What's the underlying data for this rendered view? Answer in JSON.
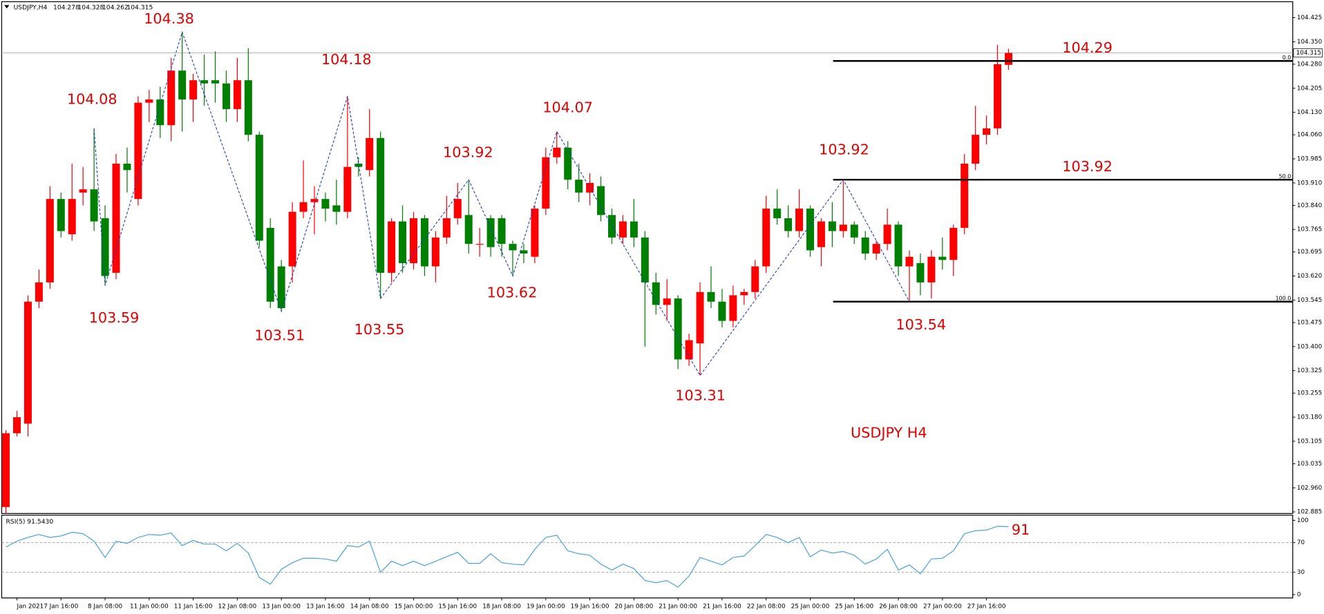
{
  "chart_data": {
    "type": "candlestick",
    "symbol": "USDJPY,H4",
    "up_color": "#ff0000",
    "down_color": "#008000",
    "ylim": [
      102.88,
      104.472
    ],
    "yticks": [
      104.425,
      {
        "value": 104.35,
        "label": "104.350"
      },
      {
        "value": 104.28,
        "label": "104.280"
      },
      104.205,
      {
        "value": 104.13,
        "label": "104.130"
      },
      {
        "value": 104.06,
        "label": "104.060"
      },
      103.985,
      {
        "value": 103.91,
        "label": "103.910"
      },
      {
        "value": 103.84,
        "label": "103.840"
      },
      103.765,
      103.695,
      {
        "value": 103.62,
        "label": "103.620"
      },
      103.545,
      103.475,
      {
        "value": 103.4,
        "label": "103.400"
      },
      103.325,
      103.255,
      {
        "value": 103.18,
        "label": "103.180"
      },
      103.105,
      103.035,
      {
        "value": 102.96,
        "label": "102.960"
      },
      102.885
    ],
    "categories": [
      null,
      "Jan 2021",
      null,
      null,
      null,
      "7 Jan 16:00",
      null,
      null,
      null,
      "8 Jan 08:00",
      null,
      null,
      null,
      "11 Jan 00:00",
      null,
      null,
      null,
      "11 Jan 16:00",
      null,
      null,
      null,
      "12 Jan 08:00",
      null,
      null,
      null,
      "13 Jan 00:00",
      null,
      null,
      null,
      "13 Jan 16:00",
      null,
      null,
      null,
      "14 Jan 08:00",
      null,
      null,
      null,
      "15 Jan 00:00",
      null,
      null,
      null,
      "15 Jan 16:00",
      null,
      null,
      null,
      "18 Jan 08:00",
      null,
      null,
      null,
      "19 Jan 00:00",
      null,
      null,
      null,
      "19 Jan 16:00",
      null,
      null,
      null,
      "20 Jan 08:00",
      null,
      null,
      null,
      "21 Jan 00:00",
      null,
      null,
      null,
      "21 Jan 16:00",
      null,
      null,
      null,
      "22 Jan 08:00",
      null,
      null,
      null,
      "25 Jan 00:00",
      null,
      null,
      null,
      "25 Jan 16:00",
      null,
      null,
      null,
      "26 Jan 08:00",
      null,
      null,
      null,
      "27 Jan 00:00",
      null,
      null,
      null,
      "27 Jan 16:00",
      null,
      null
    ],
    "ohlc": [
      [
        102.9,
        103.14,
        102.88,
        103.13
      ],
      [
        103.13,
        103.2,
        103.12,
        103.18
      ],
      [
        103.16,
        103.56,
        103.12,
        103.54
      ],
      [
        103.54,
        103.64,
        103.52,
        103.6
      ],
      [
        103.6,
        103.9,
        103.58,
        103.86
      ],
      [
        103.86,
        103.88,
        103.74,
        103.76
      ],
      [
        103.75,
        103.97,
        103.73,
        103.86
      ],
      [
        103.88,
        103.96,
        103.84,
        103.89
      ],
      [
        103.89,
        104.08,
        103.76,
        103.79
      ],
      [
        103.8,
        103.84,
        103.59,
        103.62
      ],
      [
        103.63,
        104.0,
        103.61,
        103.97
      ],
      [
        103.97,
        104.02,
        103.88,
        103.95
      ],
      [
        103.86,
        104.18,
        103.84,
        104.16
      ],
      [
        104.16,
        104.2,
        104.1,
        104.17
      ],
      [
        104.17,
        104.21,
        104.05,
        104.09
      ],
      [
        104.09,
        104.3,
        104.04,
        104.26
      ],
      [
        104.26,
        104.38,
        104.07,
        104.17
      ],
      [
        104.17,
        104.25,
        104.1,
        104.23
      ],
      [
        104.23,
        104.31,
        104.15,
        104.22
      ],
      [
        104.23,
        104.32,
        104.16,
        104.22
      ],
      [
        104.22,
        104.26,
        104.1,
        104.14
      ],
      [
        104.14,
        104.3,
        104.1,
        104.23
      ],
      [
        104.23,
        104.33,
        104.04,
        104.06
      ],
      [
        104.06,
        104.07,
        103.71,
        103.73
      ],
      [
        103.77,
        103.8,
        103.52,
        103.54
      ],
      [
        103.65,
        103.67,
        103.51,
        103.52
      ],
      [
        103.65,
        103.85,
        103.6,
        103.82
      ],
      [
        103.82,
        103.98,
        103.8,
        103.85
      ],
      [
        103.85,
        103.9,
        103.75,
        103.86
      ],
      [
        103.86,
        103.88,
        103.79,
        103.83
      ],
      [
        103.84,
        103.92,
        103.78,
        103.82
      ],
      [
        103.82,
        104.18,
        103.8,
        103.96
      ],
      [
        103.97,
        103.99,
        103.93,
        103.96
      ],
      [
        103.95,
        104.14,
        103.93,
        104.05
      ],
      [
        104.05,
        104.07,
        103.55,
        103.63
      ],
      [
        103.63,
        103.8,
        103.6,
        103.79
      ],
      [
        103.79,
        103.84,
        103.63,
        103.66
      ],
      [
        103.66,
        103.82,
        103.64,
        103.8
      ],
      [
        103.8,
        103.81,
        103.62,
        103.65
      ],
      [
        103.65,
        103.76,
        103.6,
        103.74
      ],
      [
        103.74,
        103.87,
        103.72,
        103.8
      ],
      [
        103.8,
        103.91,
        103.78,
        103.86
      ],
      [
        103.81,
        103.92,
        103.69,
        103.72
      ],
      [
        103.72,
        103.77,
        103.68,
        103.72
      ],
      [
        103.8,
        103.81,
        103.68,
        103.71
      ],
      [
        103.8,
        103.81,
        103.68,
        103.72
      ],
      [
        103.72,
        103.73,
        103.62,
        103.7
      ],
      [
        103.7,
        103.72,
        103.66,
        103.69
      ],
      [
        103.68,
        103.84,
        103.66,
        103.83
      ],
      [
        103.83,
        104.02,
        103.81,
        103.99
      ],
      [
        103.99,
        104.07,
        103.97,
        104.02
      ],
      [
        104.02,
        104.04,
        103.89,
        103.92
      ],
      [
        103.92,
        103.97,
        103.85,
        103.88
      ],
      [
        103.88,
        103.94,
        103.84,
        103.91
      ],
      [
        103.9,
        103.93,
        103.79,
        103.81
      ],
      [
        103.81,
        103.83,
        103.72,
        103.74
      ],
      [
        103.74,
        103.81,
        103.72,
        103.79
      ],
      [
        103.79,
        103.86,
        103.71,
        103.74
      ],
      [
        103.74,
        103.76,
        103.4,
        103.6
      ],
      [
        103.6,
        103.63,
        103.5,
        103.53
      ],
      [
        103.53,
        103.61,
        103.48,
        103.55
      ],
      [
        103.55,
        103.56,
        103.33,
        103.36
      ],
      [
        103.36,
        103.44,
        103.34,
        103.42
      ],
      [
        103.41,
        103.6,
        103.31,
        103.57
      ],
      [
        103.57,
        103.65,
        103.52,
        103.54
      ],
      [
        103.54,
        103.58,
        103.46,
        103.48
      ],
      [
        103.48,
        103.59,
        103.46,
        103.56
      ],
      [
        103.56,
        103.58,
        103.53,
        103.57
      ],
      [
        103.57,
        103.67,
        103.55,
        103.65
      ],
      [
        103.65,
        103.87,
        103.63,
        103.83
      ],
      [
        103.83,
        103.89,
        103.78,
        103.8
      ],
      [
        103.8,
        103.84,
        103.74,
        103.76
      ],
      [
        103.76,
        103.89,
        103.74,
        103.83
      ],
      [
        103.83,
        103.84,
        103.68,
        103.7
      ],
      [
        103.71,
        103.8,
        103.65,
        103.79
      ],
      [
        103.79,
        103.85,
        103.71,
        103.76
      ],
      [
        103.76,
        103.92,
        103.74,
        103.78
      ],
      [
        103.78,
        103.79,
        103.72,
        103.74
      ],
      [
        103.74,
        103.76,
        103.67,
        103.69
      ],
      [
        103.69,
        103.73,
        103.67,
        103.72
      ],
      [
        103.72,
        103.83,
        103.7,
        103.78
      ],
      [
        103.78,
        103.79,
        103.62,
        103.65
      ],
      [
        103.65,
        103.7,
        103.54,
        103.68
      ],
      [
        103.66,
        103.69,
        103.56,
        103.6
      ],
      [
        103.6,
        103.7,
        103.55,
        103.68
      ],
      [
        103.68,
        103.74,
        103.64,
        103.67
      ],
      [
        103.67,
        103.78,
        103.62,
        103.77
      ],
      [
        103.77,
        104.0,
        103.75,
        103.97
      ],
      [
        103.97,
        104.15,
        103.95,
        104.06
      ],
      [
        104.06,
        104.12,
        104.03,
        104.08
      ],
      [
        104.08,
        104.34,
        104.06,
        104.28
      ],
      [
        104.278,
        104.328,
        104.262,
        104.315
      ]
    ],
    "zigzag": {
      "color": "#1f3fbf",
      "values": [
        104.08,
        103.59,
        104.38,
        103.51,
        104.18,
        103.55,
        103.92,
        103.62,
        104.07,
        103.31,
        103.92,
        103.54
      ]
    },
    "fib_levels": [
      {
        "label": "0.0",
        "value": 104.29
      },
      {
        "label": "50.0",
        "value": 103.92
      },
      {
        "label": "100.0",
        "value": 103.54
      }
    ],
    "annotations": [
      "USDJPY H4",
      "91"
    ],
    "rsi": {
      "label": "RSI(5) 91.5430",
      "color": "#4aa3df",
      "ylim": [
        -4.5,
        107
      ],
      "yticks": [
        0,
        30,
        70,
        100
      ],
      "levels": [
        30,
        70
      ],
      "values": [
        64,
        72,
        77,
        81,
        77,
        79,
        84,
        82,
        72,
        50,
        72,
        69,
        77,
        81,
        80,
        83,
        66,
        73,
        68,
        68,
        59,
        69,
        56,
        23,
        14,
        34,
        43,
        49,
        49,
        48,
        45,
        66,
        64,
        72,
        30,
        45,
        39,
        45,
        39,
        45,
        51,
        57,
        42,
        42,
        55,
        43,
        41,
        40,
        61,
        77,
        80,
        59,
        55,
        53,
        41,
        33,
        41,
        35,
        19,
        16,
        19,
        10,
        25,
        50,
        45,
        40,
        50,
        52,
        66,
        81,
        77,
        70,
        77,
        51,
        60,
        56,
        58,
        53,
        41,
        48,
        61,
        33,
        40,
        28,
        48,
        49,
        59,
        82,
        86,
        87,
        92,
        91.543
      ]
    }
  }
}
